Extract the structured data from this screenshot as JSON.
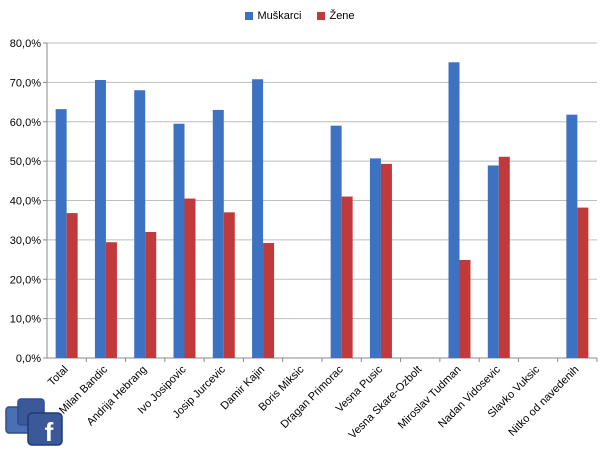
{
  "chart_data": {
    "type": "bar",
    "title": "",
    "xlabel": "",
    "ylabel": "",
    "ylim": [
      0,
      80
    ],
    "yticks": [
      "0,0%",
      "10,0%",
      "20,0%",
      "30,0%",
      "40,0%",
      "50,0%",
      "60,0%",
      "70,0%",
      "80,0%"
    ],
    "categories": [
      "Total",
      "Milan Bandic",
      "Andrija Hebrang",
      "Ivo Josipovic",
      "Josip Jurcevic",
      "Damir Kajin",
      "Boris Miksic",
      "Dragan Primorac",
      "Vesna Pusic",
      "Vesna Skare-Ozbolt",
      "Miroslav Tudman",
      "Nadan Vidosevic",
      "Slavko Vuksic",
      "Nitko od navedenih"
    ],
    "series": [
      {
        "name": "Muškarci",
        "color": "#3d72c2",
        "values": [
          63.2,
          70.6,
          68.0,
          59.5,
          63.0,
          70.8,
          null,
          59.0,
          50.7,
          null,
          75.1,
          48.9,
          null,
          61.8
        ]
      },
      {
        "name": "Žene",
        "color": "#c0393b",
        "values": [
          36.8,
          29.4,
          32.0,
          40.5,
          37.0,
          29.2,
          null,
          41.0,
          49.3,
          null,
          24.9,
          51.1,
          null,
          38.2
        ]
      }
    ],
    "grid": true,
    "legend_position": "top-center"
  },
  "logo": {
    "name": "facebook-logo-icon",
    "letter": "f"
  }
}
